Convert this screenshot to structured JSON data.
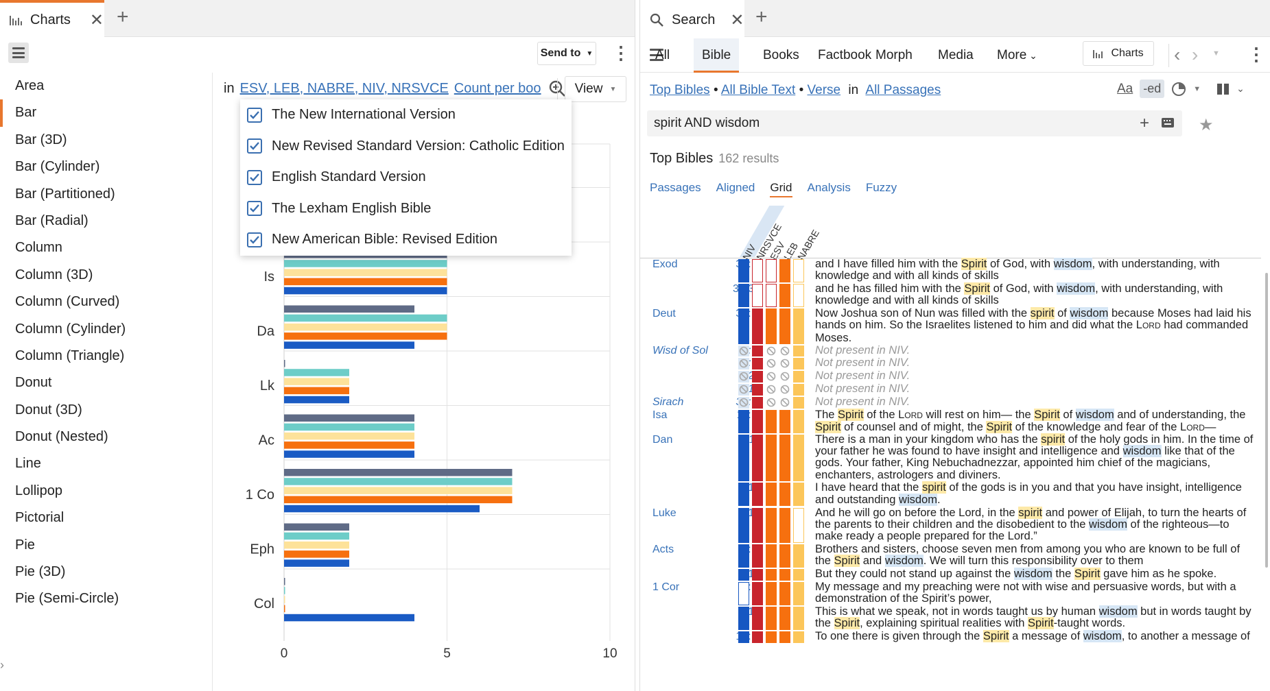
{
  "left": {
    "tab": {
      "label": "Charts"
    },
    "send_to": "Send to",
    "chart_types": [
      "Area",
      "Bar",
      "Bar (3D)",
      "Bar (Cylinder)",
      "Bar (Partitioned)",
      "Bar (Radial)",
      "Column",
      "Column (3D)",
      "Column (Curved)",
      "Column (Cylinder)",
      "Column (Triangle)",
      "Donut",
      "Donut (3D)",
      "Donut (Nested)",
      "Line",
      "Lollipop",
      "Pictorial",
      "Pie",
      "Pie (3D)",
      "Pie (Semi-Circle)"
    ],
    "selected_type": "Bar",
    "query": {
      "in": "in",
      "versions": "ESV, LEB, NABRE, NIV, NRSVCE",
      "count": "Count per boo"
    },
    "view_label": "View",
    "dropdown": [
      {
        "label": "The New International Version",
        "checked": true
      },
      {
        "label": "New Revised Standard Version: Catholic Edition",
        "checked": true
      },
      {
        "label": "English Standard Version",
        "checked": true
      },
      {
        "label": "The Lexham English Bible",
        "checked": true
      },
      {
        "label": "New American Bible: Revised Edition",
        "checked": true
      }
    ]
  },
  "chart_data": {
    "type": "bar",
    "orientation": "horizontal",
    "categories": [
      "Is",
      "Da",
      "Lk",
      "Ac",
      "1 Co",
      "Eph",
      "Col"
    ],
    "series": [
      {
        "color": "#5f6b86",
        "values": [
          5,
          4,
          0,
          4,
          7,
          2,
          0
        ]
      },
      {
        "color": "#6dcdc8",
        "values": [
          5,
          5,
          2,
          4,
          7,
          2,
          0
        ]
      },
      {
        "color": "#fde29a",
        "values": [
          5,
          5,
          2,
          4,
          7,
          2,
          0
        ]
      },
      {
        "color": "#f6700f",
        "values": [
          5,
          5,
          2,
          4,
          7,
          2,
          0
        ]
      },
      {
        "color": "#1a5bc4",
        "values": [
          5,
          4,
          2,
          4,
          6,
          2,
          4
        ]
      }
    ],
    "xticks": [
      "0",
      "5",
      "10"
    ],
    "xlim": [
      0,
      10
    ]
  },
  "right": {
    "tab": {
      "label": "Search"
    },
    "nav": [
      "All",
      "Bible",
      "Books",
      "Factbook",
      "Morph",
      "Media",
      "More"
    ],
    "nav_selected": "Bible",
    "charts_label": "Charts",
    "crumbs": {
      "a": "Top Bibles",
      "b": "All Bible Text",
      "c": "Verse",
      "in": "in",
      "d": "All Passages"
    },
    "aa": "Aa",
    "ed": "-ed",
    "search": "spirit AND wisdom",
    "results_title": "Top Bibles",
    "results_count": "162 results",
    "subtabs": [
      "Passages",
      "Aligned",
      "Grid",
      "Analysis",
      "Fuzzy"
    ],
    "subtab_selected": "Grid",
    "columns": [
      "NIV",
      "NRSVCE",
      "ESV",
      "LEB",
      "NABRE"
    ],
    "rows": [
      {
        "book": "Exod",
        "ref": "31: 3",
        "h": 2,
        "cells": [
          "blue",
          "oempty",
          "oempty",
          "orange",
          "yempty"
        ],
        "html": "and I have filled him with the <span class='hs'>Spirit</span> of God, with <span class='hw'>wisdom</span>, with understanding, with knowledge and with all kinds of skills"
      },
      {
        "book": "",
        "ref": "35:31",
        "h": 2,
        "cells": [
          "blue",
          "oempty",
          "oempty",
          "orange",
          "yempty"
        ],
        "html": "and he has filled him with the <span class='hs'>Spirit</span> of God, with <span class='hw'>wisdom</span>, with understanding, with knowledge and with all kinds of skills"
      },
      {
        "book": "Deut",
        "ref": "34: 9",
        "h": 3,
        "cells": [
          "blue",
          "red",
          "orange",
          "orange",
          "yellow"
        ],
        "html": "Now Joshua son of Nun was filled with the <span class='hs'>spirit</span> of <span class='hw'>wisdom</span> because Moses had laid his hands on him. So the Israelites listened to him and did what the L<span class='sc'>ord</span> had commanded Moses."
      },
      {
        "book": "Wisd of Sol",
        "it": true,
        "ref": "1: 6",
        "h": 1,
        "np": true,
        "cells": [
          "na",
          "red",
          "na",
          "na",
          "yellow"
        ],
        "html": "Not present in NIV."
      },
      {
        "book": "",
        "it": true,
        "ref": "7: 7",
        "h": 1,
        "np": true,
        "cells": [
          "na",
          "red",
          "na",
          "na",
          "yellow"
        ],
        "html": "Not present in NIV."
      },
      {
        "book": "",
        "it": true,
        "ref": "22",
        "h": 1,
        "np": true,
        "cells": [
          "na",
          "red",
          "na",
          "na",
          "yellow"
        ],
        "html": "Not present in NIV."
      },
      {
        "book": "",
        "it": true,
        "ref": "9:17",
        "h": 1,
        "np": true,
        "cells": [
          "na",
          "red",
          "na",
          "na",
          "yellow"
        ],
        "html": "Not present in NIV."
      },
      {
        "book": "Sirach",
        "it": true,
        "ref": "39: 6",
        "h": 1,
        "np": true,
        "cells": [
          "na",
          "red",
          "na",
          "na",
          "yellow"
        ],
        "html": "Not present in NIV."
      },
      {
        "book": "Isa",
        "ref": "11: 2",
        "h": 2,
        "cells": [
          "blue",
          "red",
          "orange",
          "orange",
          "yellow"
        ],
        "html": "The <span class='hs'>Spirit</span> of the L<span class='sc'>ord</span> will rest on him— the <span class='hs'>Spirit</span> of <span class='hw'>wisdom</span> and of understanding, the <span class='hs'>Spirit</span> of counsel and of might, the <span class='hs'>Spirit</span> of the knowledge and fear of the L<span class='sc'>ord</span>—"
      },
      {
        "book": "Dan",
        "ref": "5:11",
        "h": 4,
        "cells": [
          "blue",
          "red",
          "orange",
          "orange",
          "yellow"
        ],
        "html": "There is a man in your kingdom who has the <span class='hs'>spirit</span> of the holy gods in him. In the time of your father he was found to have insight and intelligence and <span class='hw'>wisdom</span> like that of the gods. Your father, King Nebuchadnezzar, appointed him chief of the magicians, enchanters, astrologers and diviners."
      },
      {
        "book": "",
        "ref": "14",
        "h": 2,
        "cells": [
          "blue",
          "red",
          "orange",
          "orange",
          "yellow"
        ],
        "html": "I have heard that the <span class='hs'>spirit</span> of the gods is in you and that you have insight, intelligence and outstanding <span class='hw'>wisdom</span>."
      },
      {
        "book": "Luke",
        "ref": "1:17",
        "h": 3,
        "cells": [
          "blue",
          "red",
          "orange",
          "orange",
          "yempty"
        ],
        "html": "And he will go on before the Lord, in the <span class='hs'>spirit</span> and power of Elijah, to turn the hearts of the parents to their children and the disobedient to the <span class='hw'>wisdom</span> of the righteous—to make ready a people prepared for the Lord.”"
      },
      {
        "book": "Acts",
        "ref": "6: 3",
        "h": 2,
        "cells": [
          "blue",
          "red",
          "orange",
          "orange",
          "yellow"
        ],
        "html": "Brothers and sisters, choose seven men from among you who are known to be full of the <span class='hs'>Spirit</span> and <span class='hw'>wisdom</span>. We will turn this responsibility over to them"
      },
      {
        "book": "",
        "ref": "10",
        "h": 1,
        "cells": [
          "blue",
          "red",
          "orange",
          "orange",
          "yellow"
        ],
        "html": "But they could not stand up against the <span class='hw'>wisdom</span> the <span class='hs'>Spirit</span> gave him as he spoke."
      },
      {
        "book": "1 Cor",
        "ref": "2: 4",
        "h": 2,
        "cells": [
          "bempty",
          "red",
          "orange",
          "orange",
          "yellow"
        ],
        "html": "My message and my preaching were not with wise and persuasive words, but with a demonstration of the Spirit’s power,"
      },
      {
        "book": "",
        "ref": "13",
        "h": 2,
        "cells": [
          "blue",
          "red",
          "orange",
          "orange",
          "yellow"
        ],
        "html": "This is what we speak, not in words taught us by human <span class='hw'>wisdom</span> but in words taught by the <span class='hs'>Spirit</span>, explaining spiritual realities with <span class='hs'>Spirit</span>-taught words."
      },
      {
        "book": "",
        "ref": "12: 8",
        "h": 1,
        "cells": [
          "blue",
          "red",
          "orange",
          "orange",
          "yellow"
        ],
        "html": "To one there is given through the <span class='hs'>Spirit</span> a message of <span class='hw'>wisdom</span>, to another a message of"
      }
    ]
  }
}
